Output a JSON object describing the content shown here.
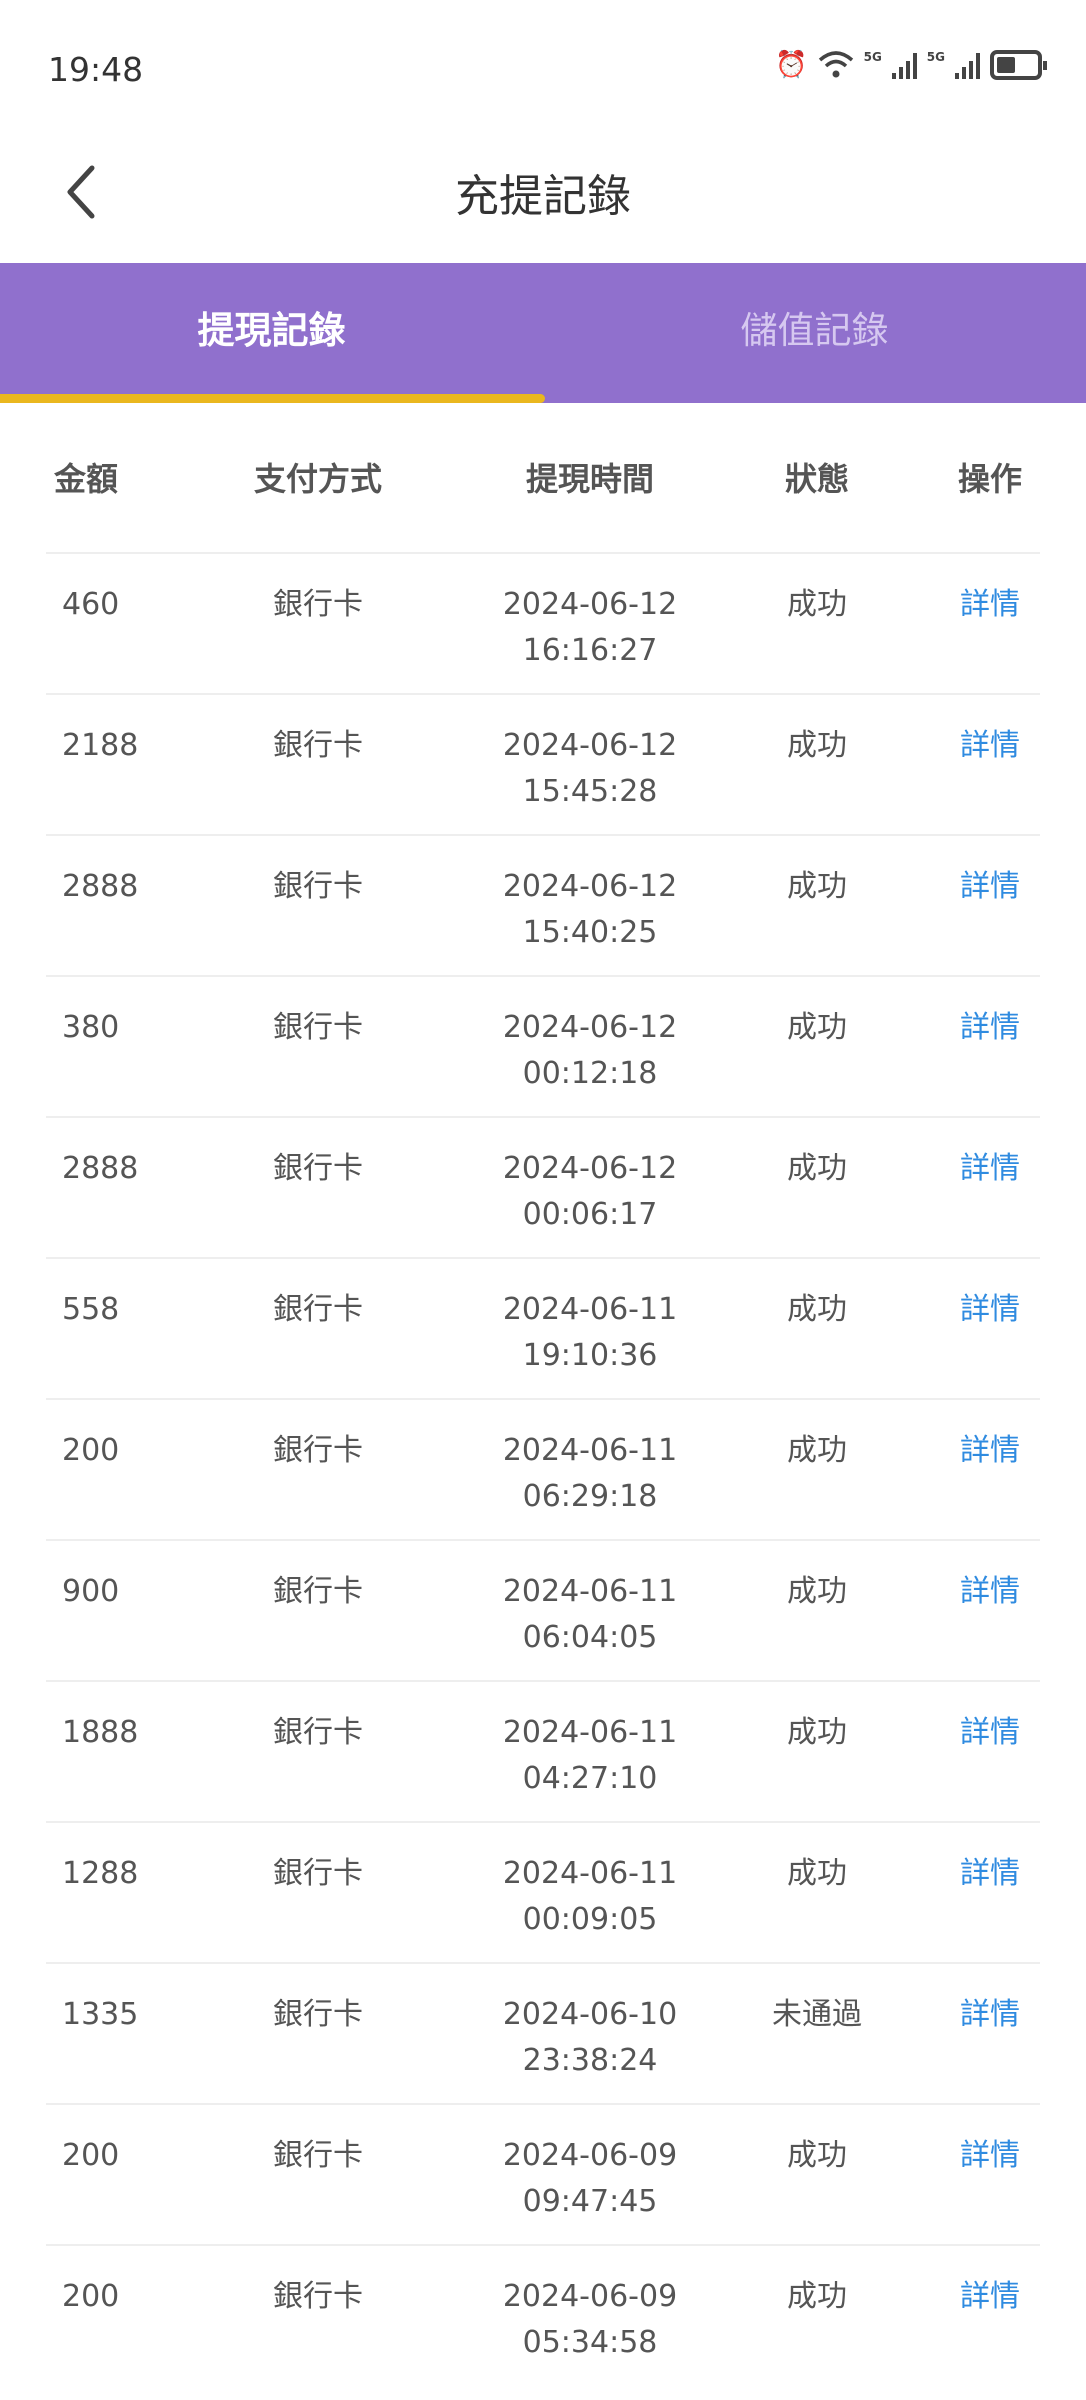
{
  "status_bar": {
    "time": "19:48",
    "network_1": "5G",
    "network_2": "5G"
  },
  "header": {
    "title": "充提記錄"
  },
  "tabs": [
    {
      "label": "提現記錄",
      "active": true
    },
    {
      "label": "儲值記錄",
      "active": false
    }
  ],
  "colors": {
    "tab_bar": "#9070cd",
    "indicator": "#eab71f",
    "link": "#2f8be0"
  },
  "table": {
    "headers": [
      "金額",
      "支付方式",
      "提現時間",
      "狀態",
      "操作"
    ],
    "rows": [
      {
        "amount": "460",
        "method": "銀行卡",
        "date": "2024-06-12",
        "time": "16:16:27",
        "status": "成功",
        "action": "詳情"
      },
      {
        "amount": "2188",
        "method": "銀行卡",
        "date": "2024-06-12",
        "time": "15:45:28",
        "status": "成功",
        "action": "詳情"
      },
      {
        "amount": "2888",
        "method": "銀行卡",
        "date": "2024-06-12",
        "time": "15:40:25",
        "status": "成功",
        "action": "詳情"
      },
      {
        "amount": "380",
        "method": "銀行卡",
        "date": "2024-06-12",
        "time": "00:12:18",
        "status": "成功",
        "action": "詳情"
      },
      {
        "amount": "2888",
        "method": "銀行卡",
        "date": "2024-06-12",
        "time": "00:06:17",
        "status": "成功",
        "action": "詳情"
      },
      {
        "amount": "558",
        "method": "銀行卡",
        "date": "2024-06-11",
        "time": "19:10:36",
        "status": "成功",
        "action": "詳情"
      },
      {
        "amount": "200",
        "method": "銀行卡",
        "date": "2024-06-11",
        "time": "06:29:18",
        "status": "成功",
        "action": "詳情"
      },
      {
        "amount": "900",
        "method": "銀行卡",
        "date": "2024-06-11",
        "time": "06:04:05",
        "status": "成功",
        "action": "詳情"
      },
      {
        "amount": "1888",
        "method": "銀行卡",
        "date": "2024-06-11",
        "time": "04:27:10",
        "status": "成功",
        "action": "詳情"
      },
      {
        "amount": "1288",
        "method": "銀行卡",
        "date": "2024-06-11",
        "time": "00:09:05",
        "status": "成功",
        "action": "詳情"
      },
      {
        "amount": "1335",
        "method": "銀行卡",
        "date": "2024-06-10",
        "time": "23:38:24",
        "status": "未通過",
        "action": "詳情"
      },
      {
        "amount": "200",
        "method": "銀行卡",
        "date": "2024-06-09",
        "time": "09:47:45",
        "status": "成功",
        "action": "詳情"
      },
      {
        "amount": "200",
        "method": "銀行卡",
        "date": "2024-06-09",
        "time": "05:34:58",
        "status": "成功",
        "action": "詳情"
      }
    ]
  }
}
